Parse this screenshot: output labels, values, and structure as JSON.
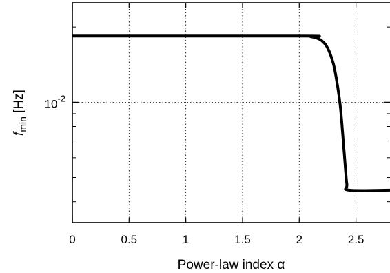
{
  "chart_data": {
    "type": "line",
    "xlabel": "Power-law index α",
    "ylabel": {
      "main": "f",
      "sub": "min",
      "unit": " [Hz]"
    },
    "y_scale": "log",
    "xlim": [
      0,
      2.8
    ],
    "ylim": [
      0.0033,
      0.025
    ],
    "x_ticks": [
      {
        "value": 0,
        "label": "0"
      },
      {
        "value": 0.5,
        "label": "0.5"
      },
      {
        "value": 1,
        "label": "1"
      },
      {
        "value": 1.5,
        "label": "1.5"
      },
      {
        "value": 2,
        "label": "2"
      },
      {
        "value": 2.5,
        "label": "2.5"
      }
    ],
    "y_major_tick": {
      "value": 0.01,
      "base": "10",
      "exponent": "-2"
    },
    "y_minor_ticks": [
      0.004,
      0.005,
      0.006,
      0.007,
      0.008,
      0.009,
      0.02
    ],
    "grid": true,
    "series": [
      {
        "color": "#000000",
        "x": [
          0,
          2.0,
          2.1,
          2.15,
          2.2,
          2.25,
          2.3,
          2.33,
          2.36,
          2.38,
          2.4,
          2.42,
          2.44,
          2.8
        ],
        "y": [
          0.0184,
          0.0184,
          0.0183,
          0.0181,
          0.0176,
          0.0165,
          0.0143,
          0.0122,
          0.0098,
          0.0078,
          0.006,
          0.0047,
          0.00445,
          0.00445
        ]
      }
    ]
  }
}
